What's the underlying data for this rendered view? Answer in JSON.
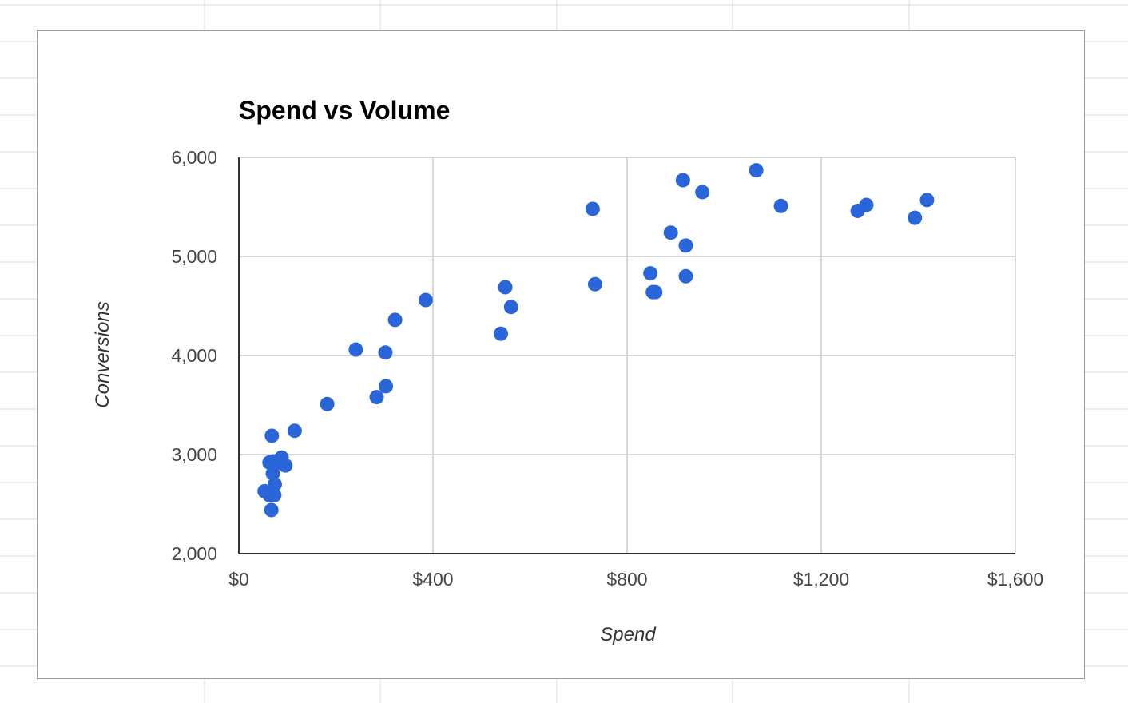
{
  "colors": {
    "point": "#2a66d9",
    "grid": "#cccccc",
    "axis": "#333333",
    "sheet_grid": "#dcdcdc"
  },
  "chart_data": {
    "type": "scatter",
    "title": "Spend vs Volume",
    "xlabel": "Spend",
    "ylabel": "Conversions",
    "xlim": [
      0,
      1600
    ],
    "ylim": [
      2000,
      6000
    ],
    "x_ticks": [
      "$0",
      "$400",
      "$800",
      "$1,200",
      "$1,600"
    ],
    "y_ticks": [
      "2,000",
      "3,000",
      "4,000",
      "5,000",
      "6,000"
    ],
    "grid": true,
    "legend": "none",
    "x": [
      53,
      63,
      67,
      70,
      73,
      74,
      63,
      70,
      73,
      72,
      86,
      96,
      88,
      68,
      115,
      182,
      284,
      303,
      302,
      241,
      322,
      385,
      540,
      549,
      561,
      729,
      734,
      848,
      853,
      858,
      890,
      915,
      921,
      921,
      955,
      1066,
      1117,
      1275,
      1293,
      1393,
      1418
    ],
    "y": [
      2630,
      2590,
      2440,
      2610,
      2590,
      2700,
      2920,
      2810,
      2900,
      2930,
      2930,
      2890,
      2970,
      3190,
      3240,
      3510,
      3580,
      3690,
      4030,
      4060,
      4360,
      4560,
      4220,
      4690,
      4490,
      5480,
      4720,
      4830,
      4640,
      4640,
      5240,
      5770,
      5110,
      4800,
      5650,
      5870,
      5510,
      5460,
      5520,
      5390,
      5570
    ]
  }
}
